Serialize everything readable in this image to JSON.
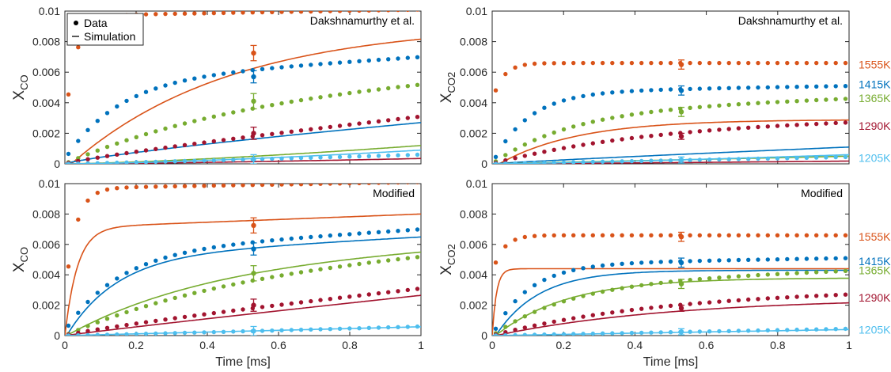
{
  "figure": {
    "colors": {
      "1555K": "#d95319",
      "1415K": "#0072bd",
      "1365K": "#77ac30",
      "1290K": "#a2142f",
      "1205K": "#4dbeee"
    },
    "temperature_labels": [
      "1555K",
      "1415K",
      "1365K",
      "1290K",
      "1205K"
    ],
    "legend": {
      "data_label": "Data",
      "sim_label": "Simulation",
      "location": "top-left of top-left panel"
    }
  },
  "chart_data": [
    {
      "id": "co-dak",
      "type": "scatter",
      "annotation": "Dakshnamurthy et al.",
      "ylabel": "X",
      "ylabel_sub": "CO",
      "xlabel": "",
      "xlim": [
        0,
        1
      ],
      "ylim": [
        0,
        0.01
      ],
      "x_ticks": [
        "0",
        "0.2",
        "0.4",
        "0.6",
        "0.8",
        "1"
      ],
      "y_ticks": [
        "0",
        "0.002",
        "0.004",
        "0.006",
        "0.008",
        "0.01"
      ],
      "show_x_ticklabels": false,
      "show_legend": true,
      "show_temperature_labels": false,
      "series": [
        {
          "name": "1555K",
          "data": {
            "kind": "exp",
            "A": 0.0072,
            "tau": 0.03,
            "b": 0.0004,
            "y0": 0.0025
          },
          "sim": {
            "kind": "exp",
            "A": 0.0092,
            "tau": 0.45,
            "b": 0,
            "x0": 0.018
          },
          "errorbar": {
            "x": 0.53,
            "y": 0.00725,
            "err": 0.0005
          }
        },
        {
          "name": "1415K",
          "data": {
            "kind": "exp",
            "A": 0.0052,
            "tau": 0.15,
            "b": 0.0015,
            "y0": 0.0003
          },
          "sim": {
            "kind": "quad",
            "a": 0.0027,
            "p": 0.8
          },
          "errorbar": {
            "x": 0.53,
            "y": 0.0057,
            "err": 0.0004
          }
        },
        {
          "name": "1365K",
          "data": {
            "kind": "exp",
            "A": 0.0045,
            "tau": 0.5,
            "b": 0.0013,
            "y0": 0
          },
          "sim": {
            "kind": "quad",
            "a": 0.0012,
            "p": 1.4
          },
          "errorbar": {
            "x": 0.53,
            "y": 0.0041,
            "err": 0.0005
          }
        },
        {
          "name": "1290K",
          "data": {
            "kind": "lin",
            "a": 0.0031,
            "p": 0.85
          },
          "sim": {
            "kind": "quad",
            "a": 0.00035,
            "p": 1.4
          },
          "errorbar": {
            "x": 0.53,
            "y": 0.002,
            "err": 0.0004
          }
        },
        {
          "name": "1205K",
          "data": {
            "kind": "lin",
            "a": 0.0006,
            "p": 1.1
          },
          "sim": {
            "kind": "quad",
            "a": 0.0009,
            "p": 1.5
          },
          "errorbar": {
            "x": 0.53,
            "y": 0.0003,
            "err": 0.0003
          }
        }
      ]
    },
    {
      "id": "co2-dak",
      "type": "scatter",
      "annotation": "Dakshnamurthy et al.",
      "ylabel": "X",
      "ylabel_sub": "CO2",
      "xlabel": "",
      "xlim": [
        0,
        1
      ],
      "ylim": [
        0,
        0.01
      ],
      "x_ticks": [
        "0",
        "0.2",
        "0.4",
        "0.6",
        "0.8",
        "1"
      ],
      "y_ticks": [
        "0",
        "0.002",
        "0.004",
        "0.006",
        "0.008",
        "0.01"
      ],
      "show_x_ticklabels": false,
      "show_legend": false,
      "show_temperature_labels": true,
      "temperature_label_y": [
        0.0065,
        0.0052,
        0.0043,
        0.0025,
        0.0004
      ],
      "series": [
        {
          "name": "1555K",
          "data": {
            "kind": "exp",
            "A": 0.0025,
            "tau": 0.03,
            "b": 0,
            "y0": 0.0041
          },
          "sim": {
            "kind": "exp",
            "A": 0.0029,
            "tau": 0.22,
            "b": 0,
            "x0": 0.02
          },
          "errorbar": {
            "x": 0.53,
            "y": 0.0065,
            "err": 0.0003
          }
        },
        {
          "name": "1415K",
          "data": {
            "kind": "exp",
            "A": 0.0047,
            "tau": 0.1,
            "b": 0.0004,
            "y0": 0
          },
          "sim": {
            "kind": "quad",
            "a": 0.0011,
            "p": 0.9
          },
          "errorbar": {
            "x": 0.53,
            "y": 0.0048,
            "err": 0.0003
          }
        },
        {
          "name": "1365K",
          "data": {
            "kind": "exp",
            "A": 0.0035,
            "tau": 0.22,
            "b": 0.0008,
            "y0": 0
          },
          "sim": {
            "kind": "quad",
            "a": 0.0005,
            "p": 1.0
          },
          "errorbar": {
            "x": 0.53,
            "y": 0.0034,
            "err": 0.0003
          }
        },
        {
          "name": "1290K",
          "data": {
            "kind": "exp",
            "A": 0.0027,
            "tau": 0.45,
            "b": 0.0003,
            "y0": 0
          },
          "sim": {
            "kind": "quad",
            "a": 0.00018,
            "p": 1.2
          },
          "errorbar": {
            "x": 0.53,
            "y": 0.0018,
            "err": 0.0002
          }
        },
        {
          "name": "1205K",
          "data": {
            "kind": "lin",
            "a": 0.00045,
            "p": 1.0
          },
          "sim": {
            "kind": "quad",
            "a": 0.0006,
            "p": 1.3
          },
          "errorbar": {
            "x": 0.53,
            "y": 0.00025,
            "err": 0.0002
          }
        }
      ]
    },
    {
      "id": "co-mod",
      "type": "scatter",
      "annotation": "Modified",
      "ylabel": "X",
      "ylabel_sub": "CO",
      "xlabel": "Time [ms]",
      "xlim": [
        0,
        1
      ],
      "ylim": [
        0,
        0.01
      ],
      "x_ticks": [
        "0",
        "0.2",
        "0.4",
        "0.6",
        "0.8",
        "1"
      ],
      "y_ticks": [
        "0",
        "0.002",
        "0.004",
        "0.006",
        "0.008",
        "0.01"
      ],
      "show_x_ticklabels": true,
      "show_legend": false,
      "show_temperature_labels": false,
      "series": [
        {
          "name": "1555K",
          "data": {
            "kind": "exp",
            "A": 0.0072,
            "tau": 0.03,
            "b": 0.0004,
            "y0": 0.0025
          },
          "sim": {
            "kind": "exp",
            "A": 0.0071,
            "tau": 0.035,
            "b": 0.0009,
            "x0": 0.0
          },
          "errorbar": {
            "x": 0.53,
            "y": 0.00725,
            "err": 0.0005
          }
        },
        {
          "name": "1415K",
          "data": {
            "kind": "exp",
            "A": 0.0052,
            "tau": 0.15,
            "b": 0.0015,
            "y0": 0.0003
          },
          "sim": {
            "kind": "exp",
            "A": 0.0052,
            "tau": 0.14,
            "b": 0.0013,
            "x0": 0.005
          },
          "errorbar": {
            "x": 0.53,
            "y": 0.0057,
            "err": 0.0004
          }
        },
        {
          "name": "1365K",
          "data": {
            "kind": "exp",
            "A": 0.0045,
            "tau": 0.5,
            "b": 0.0013,
            "y0": 0
          },
          "sim": {
            "kind": "exp",
            "A": 0.0048,
            "tau": 0.4,
            "b": 0.0011,
            "x0": 0.005
          },
          "errorbar": {
            "x": 0.53,
            "y": 0.0041,
            "err": 0.0005
          }
        },
        {
          "name": "1290K",
          "data": {
            "kind": "lin",
            "a": 0.0031,
            "p": 0.85
          },
          "sim": {
            "kind": "lin",
            "a": 0.00265,
            "p": 0.95
          },
          "errorbar": {
            "x": 0.53,
            "y": 0.002,
            "err": 0.0004
          }
        },
        {
          "name": "1205K",
          "data": {
            "kind": "lin",
            "a": 0.0006,
            "p": 1.1
          },
          "sim": {
            "kind": "lin",
            "a": 0.00058,
            "p": 1.0
          },
          "errorbar": {
            "x": 0.53,
            "y": 0.0003,
            "err": 0.0003
          }
        }
      ]
    },
    {
      "id": "co2-mod",
      "type": "scatter",
      "annotation": "Modified",
      "ylabel": "X",
      "ylabel_sub": "CO2",
      "xlabel": "Time [ms]",
      "xlim": [
        0,
        1
      ],
      "ylim": [
        0,
        0.01
      ],
      "x_ticks": [
        "0",
        "0.2",
        "0.4",
        "0.6",
        "0.8",
        "1"
      ],
      "y_ticks": [
        "0",
        "0.002",
        "0.004",
        "0.006",
        "0.008",
        "0.01"
      ],
      "show_x_ticklabels": true,
      "show_legend": false,
      "show_temperature_labels": true,
      "temperature_label_y": [
        0.0065,
        0.0049,
        0.0043,
        0.0025,
        0.0004
      ],
      "series": [
        {
          "name": "1555K",
          "data": {
            "kind": "exp",
            "A": 0.0025,
            "tau": 0.03,
            "b": 0,
            "y0": 0.0041
          },
          "sim": {
            "kind": "exp",
            "A": 0.0044,
            "tau": 0.012,
            "b": 0,
            "x0": 0.0
          },
          "errorbar": {
            "x": 0.53,
            "y": 0.0065,
            "err": 0.0003
          }
        },
        {
          "name": "1415K",
          "data": {
            "kind": "exp",
            "A": 0.0047,
            "tau": 0.1,
            "b": 0.0004,
            "y0": 0
          },
          "sim": {
            "kind": "exp",
            "A": 0.0043,
            "tau": 0.12,
            "b": 0.0,
            "x0": 0.01
          },
          "errorbar": {
            "x": 0.53,
            "y": 0.0048,
            "err": 0.0003
          }
        },
        {
          "name": "1365K",
          "data": {
            "kind": "exp",
            "A": 0.0035,
            "tau": 0.22,
            "b": 0.0008,
            "y0": 0
          },
          "sim": {
            "kind": "exp",
            "A": 0.0038,
            "tau": 0.2,
            "b": 0.0,
            "x0": 0.01
          },
          "errorbar": {
            "x": 0.53,
            "y": 0.0034,
            "err": 0.0003
          }
        },
        {
          "name": "1290K",
          "data": {
            "kind": "exp",
            "A": 0.0027,
            "tau": 0.45,
            "b": 0.0003,
            "y0": 0
          },
          "sim": {
            "kind": "exp",
            "A": 0.0025,
            "tau": 0.5,
            "b": 0.0,
            "x0": 0.01
          },
          "errorbar": {
            "x": 0.53,
            "y": 0.0018,
            "err": 0.0002
          }
        },
        {
          "name": "1205K",
          "data": {
            "kind": "lin",
            "a": 0.00045,
            "p": 1.0
          },
          "sim": {
            "kind": "lin",
            "a": 0.0004,
            "p": 1.0
          },
          "errorbar": {
            "x": 0.53,
            "y": 0.00025,
            "err": 0.0002
          }
        }
      ]
    }
  ]
}
